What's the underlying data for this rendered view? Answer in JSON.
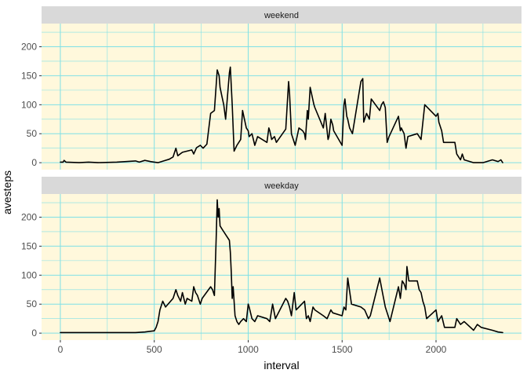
{
  "chart_data": {
    "type": "line",
    "xlabel": "interval",
    "ylabel": "avesteps",
    "xlim": [
      -100,
      2455
    ],
    "ylim": [
      -12,
      240
    ],
    "xticks": [
      0,
      500,
      1000,
      1500,
      2000
    ],
    "yticks": [
      0,
      50,
      100,
      150,
      200
    ],
    "grid": true,
    "colors": {
      "panel_background": "#FFF8DC",
      "grid": "#7FE0E6",
      "strip_background": "#D9D9D9",
      "line": "#000000"
    },
    "facets": [
      {
        "label": "weekend",
        "series": [
          {
            "x": [
              0,
              15,
              20,
              30,
              100,
              150,
              200,
              300,
              350,
              400,
              420,
              450,
              480,
              500,
              520,
              550,
              580,
              600,
              615,
              625,
              650,
              700,
              710,
              725,
              745,
              760,
              780,
              800,
              820,
              835,
              845,
              850,
              860,
              870,
              880,
              900,
              905,
              915,
              925,
              940,
              950,
              960,
              970,
              990,
              1000,
              1005,
              1020,
              1035,
              1050,
              1100,
              1110,
              1115,
              1125,
              1140,
              1150,
              1200,
              1215,
              1220,
              1230,
              1240,
              1250,
              1270,
              1290,
              1300,
              1305,
              1315,
              1320,
              1330,
              1340,
              1350,
              1355,
              1400,
              1410,
              1415,
              1425,
              1430,
              1440,
              1450,
              1455,
              1500,
              1510,
              1515,
              1525,
              1530,
              1540,
              1555,
              1600,
              1610,
              1615,
              1630,
              1645,
              1655,
              1700,
              1710,
              1720,
              1730,
              1740,
              1750,
              1800,
              1810,
              1815,
              1830,
              1840,
              1850,
              1900,
              1920,
              1940,
              2000,
              2010,
              2015,
              2030,
              2040,
              2050,
              2100,
              2110,
              2120,
              2130,
              2140,
              2150,
              2200,
              2250,
              2300,
              2330,
              2345,
              2355
            ],
            "values": [
              1,
              1,
              4,
              1,
              0,
              1,
              0,
              1,
              2,
              3,
              1,
              4,
              2,
              1,
              0,
              3,
              6,
              10,
              25,
              12,
              18,
              22,
              15,
              26,
              30,
              25,
              32,
              85,
              90,
              160,
              150,
              130,
              115,
              100,
              75,
              155,
              165,
              100,
              20,
              30,
              35,
              40,
              90,
              60,
              55,
              45,
              50,
              30,
              45,
              35,
              60,
              55,
              40,
              45,
              35,
              58,
              140,
              120,
              50,
              40,
              30,
              60,
              55,
              50,
              40,
              90,
              75,
              130,
              115,
              100,
              95,
              60,
              85,
              70,
              40,
              45,
              75,
              65,
              55,
              30,
              100,
              110,
              80,
              75,
              60,
              50,
              140,
              145,
              70,
              85,
              75,
              110,
              90,
              100,
              105,
              95,
              35,
              45,
              80,
              55,
              60,
              50,
              25,
              45,
              50,
              40,
              100,
              80,
              85,
              70,
              55,
              35,
              35,
              35,
              15,
              10,
              5,
              15,
              5,
              0,
              0,
              5,
              2,
              5,
              0
            ]
          }
        ]
      },
      {
        "label": "weekday",
        "series": [
          {
            "x": [
              0,
              100,
              200,
              300,
              400,
              450,
              500,
              510,
              520,
              530,
              545,
              560,
              600,
              615,
              625,
              640,
              650,
              665,
              675,
              700,
              710,
              720,
              730,
              745,
              755,
              800,
              810,
              820,
              830,
              835,
              840,
              845,
              850,
              860,
              870,
              880,
              900,
              905,
              910,
              915,
              920,
              930,
              940,
              950,
              960,
              975,
              990,
              1000,
              1005,
              1020,
              1035,
              1050,
              1100,
              1115,
              1130,
              1145,
              1200,
              1210,
              1220,
              1230,
              1245,
              1255,
              1300,
              1310,
              1320,
              1330,
              1345,
              1355,
              1400,
              1420,
              1440,
              1450,
              1500,
              1510,
              1520,
              1530,
              1550,
              1600,
              1620,
              1640,
              1650,
              1700,
              1715,
              1730,
              1745,
              1755,
              1800,
              1810,
              1820,
              1830,
              1840,
              1845,
              1855,
              1900,
              1910,
              1920,
              1930,
              1940,
              1950,
              2000,
              2010,
              2030,
              2045,
              2100,
              2110,
              2130,
              2150,
              2200,
              2220,
              2240,
              2300,
              2330,
              2355
            ],
            "values": [
              1,
              1,
              1,
              1,
              1,
              2,
              4,
              10,
              20,
              40,
              55,
              45,
              60,
              75,
              65,
              55,
              70,
              50,
              60,
              55,
              80,
              70,
              65,
              50,
              60,
              80,
              75,
              65,
              170,
              230,
              200,
              215,
              185,
              180,
              175,
              170,
              160,
              140,
              105,
              60,
              80,
              30,
              20,
              15,
              20,
              25,
              20,
              50,
              45,
              25,
              20,
              30,
              25,
              20,
              50,
              25,
              60,
              55,
              45,
              30,
              70,
              40,
              55,
              25,
              30,
              20,
              45,
              40,
              30,
              25,
              40,
              35,
              30,
              45,
              40,
              95,
              50,
              45,
              40,
              25,
              30,
              95,
              70,
              45,
              30,
              20,
              80,
              60,
              90,
              85,
              75,
              115,
              90,
              90,
              75,
              70,
              55,
              45,
              25,
              40,
              20,
              30,
              10,
              10,
              25,
              15,
              20,
              5,
              15,
              10,
              5,
              2,
              1
            ]
          }
        ]
      }
    ]
  }
}
